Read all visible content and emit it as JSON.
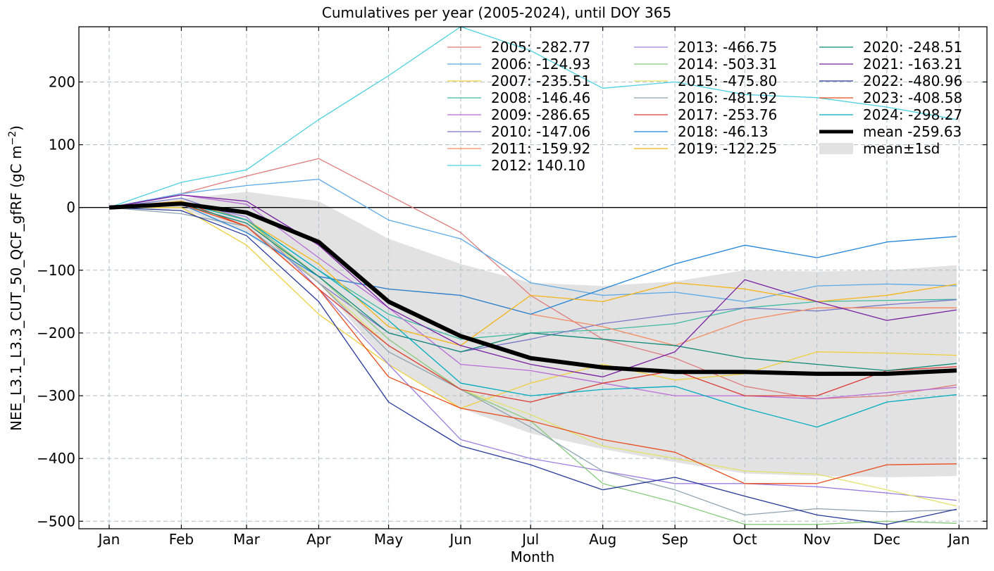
{
  "chart_data": {
    "type": "line",
    "title": "Cumulatives per year (2005-2024), until DOY 365",
    "xlabel": "Month",
    "ylabel": "NEE_L3.1_L3.3_CUT_50_QCF_gfRF  (gC m",
    "ylabel_exp": "−2",
    "ylabel_close": ")",
    "x_unit": "day of year",
    "xlim": [
      -12,
      378
    ],
    "ylim": [
      -512,
      288
    ],
    "x_ticks": [
      {
        "label": "Jan",
        "value": 1
      },
      {
        "label": "Feb",
        "value": 32
      },
      {
        "label": "Mar",
        "value": 60
      },
      {
        "label": "Apr",
        "value": 91
      },
      {
        "label": "May",
        "value": 121
      },
      {
        "label": "Jun",
        "value": 152
      },
      {
        "label": "Jul",
        "value": 182
      },
      {
        "label": "Aug",
        "value": 213
      },
      {
        "label": "Sep",
        "value": 244
      },
      {
        "label": "Oct",
        "value": 274
      },
      {
        "label": "Nov",
        "value": 305
      },
      {
        "label": "Dec",
        "value": 335
      },
      {
        "label": "Jan",
        "value": 366
      }
    ],
    "y_ticks": [
      {
        "label": "−500",
        "value": -500
      },
      {
        "label": "−400",
        "value": -400
      },
      {
        "label": "−300",
        "value": -300
      },
      {
        "label": "−200",
        "value": -200
      },
      {
        "label": "−100",
        "value": -100
      },
      {
        "label": "0",
        "value": 0
      },
      {
        "label": "100",
        "value": 100
      },
      {
        "label": "200",
        "value": 200
      }
    ],
    "grid": true,
    "legend_position": "top-right",
    "x": [
      1,
      32,
      60,
      91,
      121,
      152,
      182,
      213,
      244,
      274,
      305,
      335,
      365
    ],
    "series": [
      {
        "name": "2005",
        "label": "2005: -282.77",
        "color": "#e07b7b",
        "values": [
          0,
          22,
          50,
          78,
          20,
          -40,
          -140,
          -210,
          -240,
          -285,
          -305,
          -300,
          -282.77
        ]
      },
      {
        "name": "2006",
        "label": "2006: -124.93",
        "color": "#5aa8e6",
        "values": [
          0,
          22,
          35,
          45,
          -20,
          -50,
          -120,
          -140,
          -135,
          -150,
          -125,
          -122,
          -124.93
        ]
      },
      {
        "name": "2007",
        "label": "2007: -235.51",
        "color": "#f0cf3c",
        "values": [
          0,
          0,
          -60,
          -170,
          -250,
          -320,
          -280,
          -250,
          -275,
          -265,
          -230,
          -232,
          -235.51
        ]
      },
      {
        "name": "2008",
        "label": "2008: -146.46",
        "color": "#3fb9a3",
        "values": [
          0,
          8,
          -20,
          -100,
          -170,
          -210,
          -200,
          -195,
          -185,
          -160,
          -150,
          -148,
          -146.46
        ]
      },
      {
        "name": "2009",
        "label": "2009: -286.65",
        "color": "#b86cd6",
        "values": [
          0,
          20,
          5,
          -80,
          -160,
          -250,
          -260,
          -280,
          -300,
          -300,
          -305,
          -295,
          -286.65
        ]
      },
      {
        "name": "2010",
        "label": "2010: -147.06",
        "color": "#7a77c8",
        "values": [
          0,
          15,
          -20,
          -120,
          -200,
          -230,
          -210,
          -185,
          -170,
          -160,
          -165,
          -155,
          -147.06
        ]
      },
      {
        "name": "2011",
        "label": "2011: -159.92",
        "color": "#f38a60",
        "values": [
          0,
          10,
          -20,
          -110,
          -130,
          -140,
          -170,
          -190,
          -220,
          -180,
          -160,
          -160,
          -159.92
        ]
      },
      {
        "name": "2012",
        "label": "2012: 140.10",
        "color": "#4dd0e1",
        "values": [
          0,
          40,
          60,
          140,
          210,
          288,
          250,
          190,
          200,
          180,
          175,
          160,
          140.1
        ]
      },
      {
        "name": "2013",
        "label": "2013: -466.75",
        "color": "#9c7ee0",
        "values": [
          0,
          10,
          -15,
          -130,
          -250,
          -370,
          -400,
          -420,
          -440,
          -440,
          -445,
          -455,
          -466.75
        ]
      },
      {
        "name": "2014",
        "label": "2014: -503.31",
        "color": "#86c97d",
        "values": [
          0,
          10,
          -20,
          -110,
          -210,
          -290,
          -340,
          -440,
          -470,
          -505,
          -505,
          -500,
          -503.31
        ]
      },
      {
        "name": "2015",
        "label": "2015: -475.80",
        "color": "#e1e16a",
        "values": [
          0,
          10,
          -20,
          -120,
          -220,
          -290,
          -330,
          -380,
          -400,
          -420,
          -425,
          -450,
          -475.8
        ]
      },
      {
        "name": "2016",
        "label": "2016: -481.92",
        "color": "#8ea2b0",
        "values": [
          0,
          -10,
          -30,
          -120,
          -230,
          -290,
          -350,
          -420,
          -450,
          -490,
          -480,
          -485,
          -481.92
        ]
      },
      {
        "name": "2017",
        "label": "2017: -253.76",
        "color": "#dc3a34",
        "values": [
          0,
          10,
          -30,
          -130,
          -220,
          -290,
          -310,
          -280,
          -260,
          -300,
          -300,
          -260,
          -253.76
        ]
      },
      {
        "name": "2018",
        "label": "2018: -46.13",
        "color": "#1f84d8",
        "values": [
          0,
          5,
          -40,
          -110,
          -130,
          -140,
          -170,
          -130,
          -90,
          -60,
          -80,
          -55,
          -46.13
        ]
      },
      {
        "name": "2019",
        "label": "2019: -122.25",
        "color": "#f5b414",
        "values": [
          0,
          10,
          -20,
          -90,
          -190,
          -220,
          -140,
          -150,
          -120,
          -130,
          -150,
          -140,
          -122.25
        ]
      },
      {
        "name": "2020",
        "label": "2020: -248.51",
        "color": "#0f8a78",
        "values": [
          0,
          5,
          -25,
          -110,
          -200,
          -230,
          -200,
          -210,
          -220,
          -240,
          -250,
          -260,
          -248.51
        ]
      },
      {
        "name": "2021",
        "label": "2021: -163.21",
        "color": "#7a1fa2",
        "values": [
          0,
          20,
          10,
          -60,
          -160,
          -220,
          -250,
          -270,
          -230,
          -115,
          -150,
          -180,
          -163.21
        ]
      },
      {
        "name": "2022",
        "label": "2022: -480.96",
        "color": "#26389a",
        "values": [
          0,
          -5,
          -45,
          -150,
          -310,
          -380,
          -410,
          -450,
          -430,
          -460,
          -490,
          -505,
          -480.96
        ]
      },
      {
        "name": "2023",
        "label": "2023: -408.58",
        "color": "#ea4c1c",
        "values": [
          0,
          5,
          -30,
          -130,
          -270,
          -320,
          -340,
          -370,
          -390,
          -440,
          -440,
          -410,
          -408.58
        ]
      },
      {
        "name": "2024",
        "label": "2024: -298.27",
        "color": "#00acc1",
        "values": [
          0,
          8,
          -20,
          -100,
          -180,
          -280,
          -300,
          -290,
          -285,
          -320,
          -350,
          -310,
          -298.27
        ]
      }
    ],
    "mean": {
      "label": "mean -259.63",
      "color": "#000000",
      "values": [
        0,
        6,
        -8,
        -55,
        -150,
        -205,
        -240,
        -255,
        -262,
        -262,
        -265,
        -265,
        -259.63
      ]
    },
    "sd_band": {
      "label": "mean±1sd",
      "color": "#e2e2e2",
      "upper": [
        0,
        14,
        25,
        10,
        -50,
        -90,
        -120,
        -125,
        -118,
        -100,
        -102,
        -100,
        -92
      ],
      "lower": [
        0,
        -2,
        -41,
        -120,
        -250,
        -320,
        -360,
        -385,
        -406,
        -424,
        -428,
        -430,
        -428
      ]
    }
  }
}
